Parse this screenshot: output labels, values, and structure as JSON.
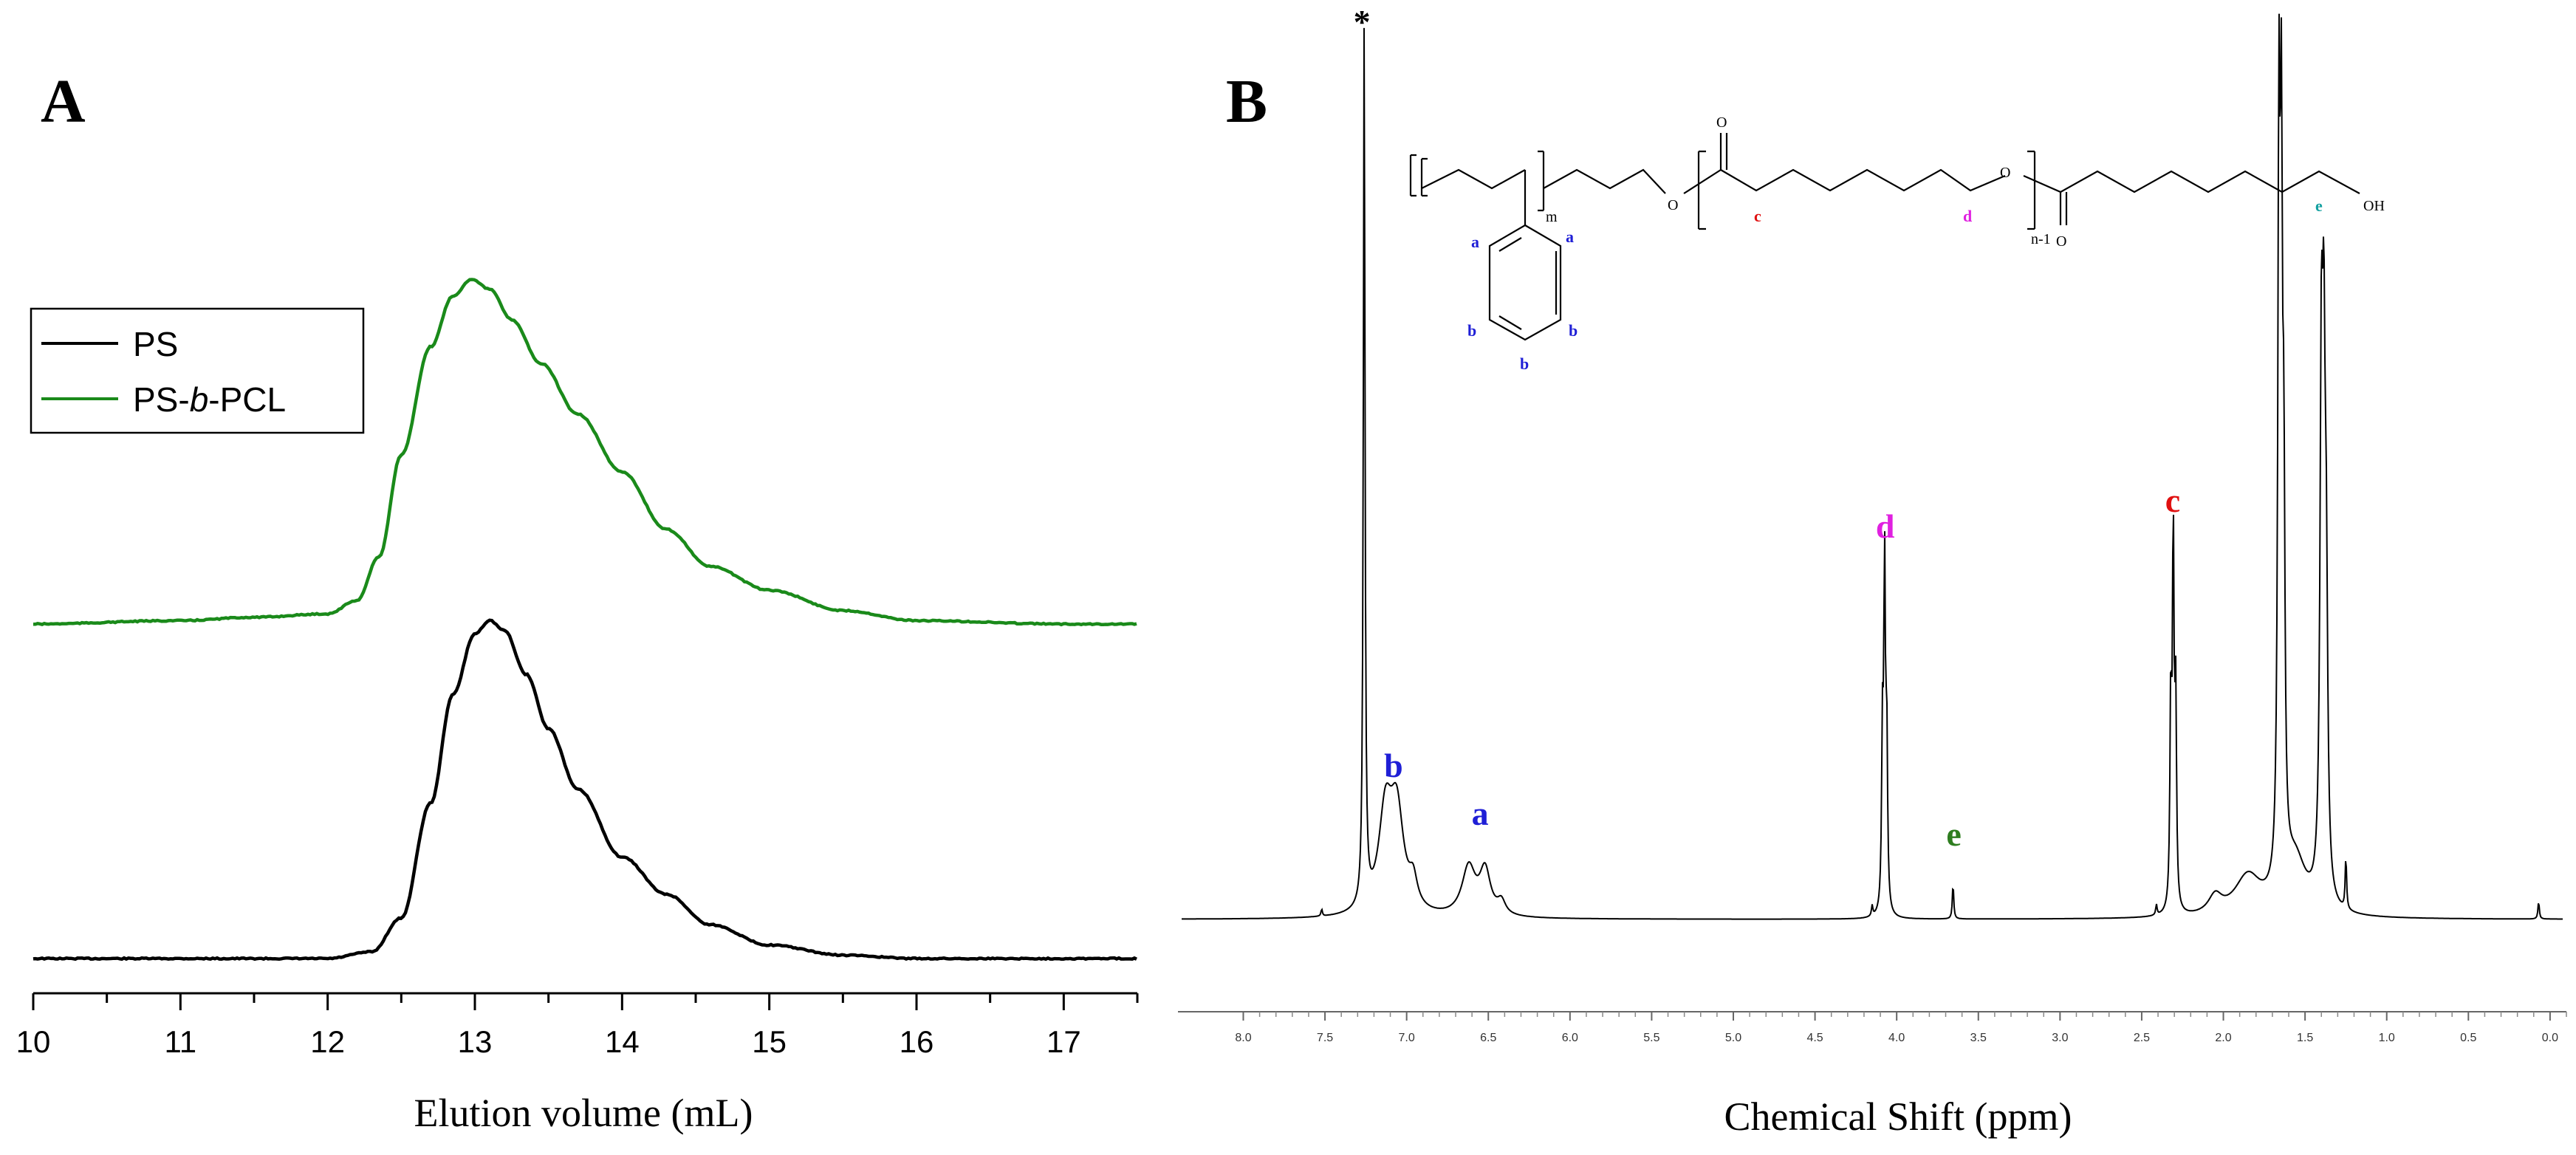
{
  "chart_data": [
    {
      "panel": "A",
      "type": "line",
      "xlabel": "Elution volume (mL)",
      "ylabel": "",
      "xlim": [
        10,
        17.5
      ],
      "x_ticks": [
        "10",
        "11",
        "12",
        "13",
        "14",
        "15",
        "16",
        "17"
      ],
      "legend": {
        "placement": "top-left"
      },
      "series": [
        {
          "name": "PS",
          "color": "#000000",
          "baseline": 0,
          "x": [
            10.0,
            11.0,
            12.0,
            12.3,
            12.5,
            12.7,
            12.85,
            13.0,
            13.1,
            13.2,
            13.35,
            13.5,
            13.7,
            14.0,
            14.3,
            14.6,
            15.0,
            15.5,
            16.0,
            17.0,
            17.5
          ],
          "y": [
            0.0,
            0.0,
            0.0,
            0.02,
            0.12,
            0.46,
            0.78,
            0.96,
            1.0,
            0.97,
            0.84,
            0.68,
            0.5,
            0.3,
            0.19,
            0.1,
            0.04,
            0.01,
            0.0,
            0.0,
            0.0
          ]
        },
        {
          "name": "PS-b-PCL",
          "color": "#1a8a1a",
          "baseline": 1,
          "x": [
            10.0,
            11.0,
            11.5,
            12.0,
            12.2,
            12.35,
            12.5,
            12.7,
            12.85,
            12.98,
            13.1,
            13.25,
            13.45,
            13.7,
            14.0,
            14.3,
            14.6,
            15.0,
            15.5,
            16.0,
            17.0,
            17.5
          ],
          "y": [
            0.0,
            0.01,
            0.02,
            0.03,
            0.07,
            0.2,
            0.5,
            0.82,
            0.97,
            1.02,
            0.99,
            0.9,
            0.77,
            0.62,
            0.45,
            0.28,
            0.17,
            0.1,
            0.04,
            0.01,
            0.0,
            0.0
          ]
        }
      ]
    },
    {
      "panel": "B",
      "type": "line",
      "xlabel": "Chemical Shift (ppm)",
      "ylabel": "",
      "xlim": [
        8.4,
        -0.1
      ],
      "x_reversed": true,
      "x_ticks": [
        "8.0",
        "7.5",
        "7.0",
        "6.5",
        "6.0",
        "5.5",
        "5.0",
        "4.5",
        "4.0",
        "3.5",
        "3.0",
        "2.5",
        "2.0",
        "1.5",
        "1.0",
        "0.5",
        "0.0"
      ],
      "peaks": [
        {
          "ppm": 7.26,
          "height": 1.0,
          "width": 0.006
        },
        {
          "ppm": 7.52,
          "height": 0.008,
          "width": 0.005
        },
        {
          "ppm": 7.13,
          "height": 0.11,
          "width": 0.05
        },
        {
          "ppm": 7.06,
          "height": 0.11,
          "width": 0.05
        },
        {
          "ppm": 6.96,
          "height": 0.03,
          "width": 0.03
        },
        {
          "ppm": 6.62,
          "height": 0.055,
          "width": 0.05
        },
        {
          "ppm": 6.52,
          "height": 0.05,
          "width": 0.04
        },
        {
          "ppm": 6.42,
          "height": 0.015,
          "width": 0.03
        },
        {
          "ppm": 4.15,
          "height": 0.012,
          "width": 0.005
        },
        {
          "ppm": 4.087,
          "height": 0.19,
          "width": 0.006
        },
        {
          "ppm": 4.074,
          "height": 0.38,
          "width": 0.006
        },
        {
          "ppm": 4.061,
          "height": 0.19,
          "width": 0.006
        },
        {
          "ppm": 3.655,
          "height": 0.04,
          "width": 0.005
        },
        {
          "ppm": 2.41,
          "height": 0.012,
          "width": 0.005
        },
        {
          "ppm": 2.322,
          "height": 0.23,
          "width": 0.006
        },
        {
          "ppm": 2.307,
          "height": 0.42,
          "width": 0.006
        },
        {
          "ppm": 2.292,
          "height": 0.23,
          "width": 0.006
        },
        {
          "ppm": 2.05,
          "height": 0.02,
          "width": 0.05
        },
        {
          "ppm": 1.85,
          "height": 0.045,
          "width": 0.1
        },
        {
          "ppm": 1.66,
          "height": 0.8,
          "width": 0.008
        },
        {
          "ppm": 1.645,
          "height": 0.72,
          "width": 0.008
        },
        {
          "ppm": 1.63,
          "height": 0.38,
          "width": 0.008
        },
        {
          "ppm": 1.56,
          "height": 0.06,
          "width": 0.08
        },
        {
          "ppm": 1.4,
          "height": 0.55,
          "width": 0.01
        },
        {
          "ppm": 1.385,
          "height": 0.5,
          "width": 0.01
        },
        {
          "ppm": 1.37,
          "height": 0.3,
          "width": 0.01
        },
        {
          "ppm": 1.25,
          "height": 0.06,
          "width": 0.005
        },
        {
          "ppm": 0.07,
          "height": 0.02,
          "width": 0.005
        }
      ],
      "annotations": [
        {
          "text": "*",
          "ppm": 7.26,
          "color": "#000000"
        },
        {
          "text": "b",
          "ppm": 7.08,
          "color": "#1f1fd6"
        },
        {
          "text": "a",
          "ppm": 6.55,
          "color": "#1f1fd6"
        },
        {
          "text": "d",
          "ppm": 4.07,
          "color": "#e020e0"
        },
        {
          "text": "e",
          "ppm": 3.65,
          "color": "#2e7d1f"
        },
        {
          "text": "c",
          "ppm": 2.31,
          "color": "#e01010"
        }
      ]
    }
  ],
  "panel_a": {
    "label": "A"
  },
  "panel_b": {
    "label": "B"
  },
  "structure": {
    "labels": [
      "m",
      "n-1",
      "O",
      "O",
      "O",
      "O",
      "OH"
    ],
    "proton_labels": [
      {
        "text": "a",
        "color": "#1f1fd6"
      },
      {
        "text": "a",
        "color": "#1f1fd6"
      },
      {
        "text": "b",
        "color": "#1f1fd6"
      },
      {
        "text": "b",
        "color": "#1f1fd6"
      },
      {
        "text": "b",
        "color": "#1f1fd6"
      },
      {
        "text": "c",
        "color": "#e01010"
      },
      {
        "text": "d",
        "color": "#e020e0"
      },
      {
        "text": "e",
        "color": "#13a0a0"
      }
    ]
  }
}
